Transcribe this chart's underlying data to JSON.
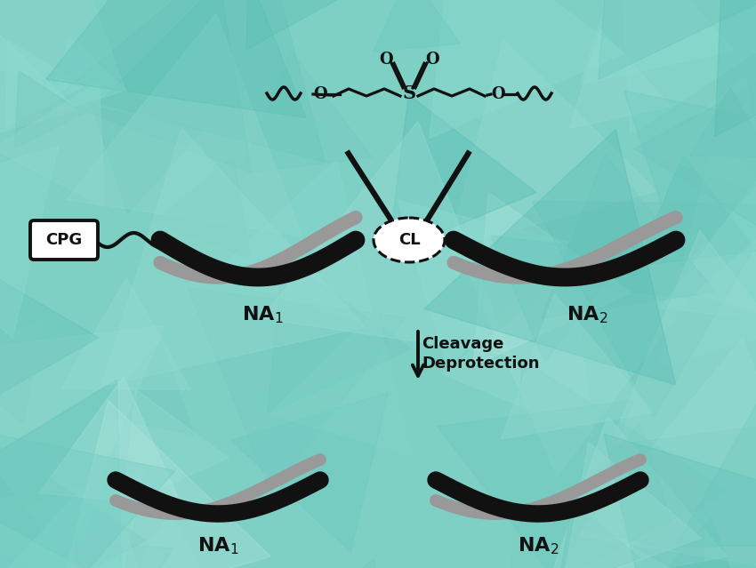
{
  "bg_color": "#7ecfc4",
  "strand_black": "#111111",
  "strand_gray": "#999999",
  "text_color": "#111111",
  "cpg_label": "CPG",
  "cl_label": "CL",
  "arrow_label1": "Cleavage",
  "arrow_label2": "Deprotection",
  "figwidth": 8.5,
  "figheight": 6.39,
  "teal_colors": [
    "#6dc4ba",
    "#82d4c8",
    "#99ddd4",
    "#72c9bf",
    "#5bbfb5",
    "#8adcd2",
    "#70c8be",
    "#94dbd0",
    "#65c2b8",
    "#7dcfc5",
    "#a0e0d8",
    "#88d8ce",
    "#60bfb5",
    "#9cddd5",
    "#78ccc2",
    "#b5e8e0",
    "#4db8ae",
    "#68c8be",
    "#90ddd4",
    "#55bdb3"
  ]
}
